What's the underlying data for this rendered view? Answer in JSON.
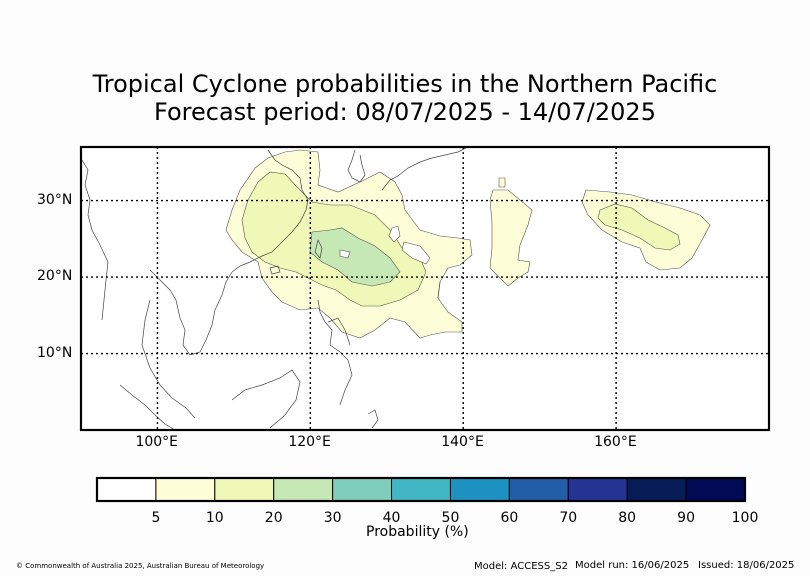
{
  "title": "Tropical Cyclone probabilities in the Northern Pacific",
  "subtitle": "Forecast period: 08/07/2025 - 14/07/2025",
  "map": {
    "lon_range": [
      90,
      180
    ],
    "lat_range": [
      0,
      37
    ],
    "lon_ticks": [
      {
        "lon": 100,
        "label": "100°E"
      },
      {
        "lon": 120,
        "label": "120°E"
      },
      {
        "lon": 140,
        "label": "140°E"
      },
      {
        "lon": 160,
        "label": "160°E"
      }
    ],
    "lat_ticks": [
      {
        "lat": 30,
        "label": "30°N"
      },
      {
        "lat": 20,
        "label": "20°N"
      },
      {
        "lat": 10,
        "label": "10°N"
      }
    ],
    "contour_levels_pct": [
      5,
      10,
      20
    ]
  },
  "colorbar": {
    "label": "Probability (%)",
    "bins": [
      {
        "color": "#ffffff"
      },
      {
        "color": "#fdfed7"
      },
      {
        "color": "#eff8b6"
      },
      {
        "color": "#c6e8b4"
      },
      {
        "color": "#7fcdbb"
      },
      {
        "color": "#41b6c4"
      },
      {
        "color": "#1d91c0"
      },
      {
        "color": "#225ea8"
      },
      {
        "color": "#253494"
      },
      {
        "color": "#081d58"
      },
      {
        "color": "#000a55"
      }
    ],
    "ticks": [
      "5",
      "10",
      "20",
      "30",
      "40",
      "50",
      "60",
      "70",
      "80",
      "90",
      "100"
    ]
  },
  "footer": {
    "copyright": "© Commonwealth of Australia 2025, Australian Bureau of Meteorology",
    "model": "Model: ACCESS_S2",
    "model_run": "Model run: 16/06/2025",
    "issued": "Issued: 18/06/2025"
  }
}
